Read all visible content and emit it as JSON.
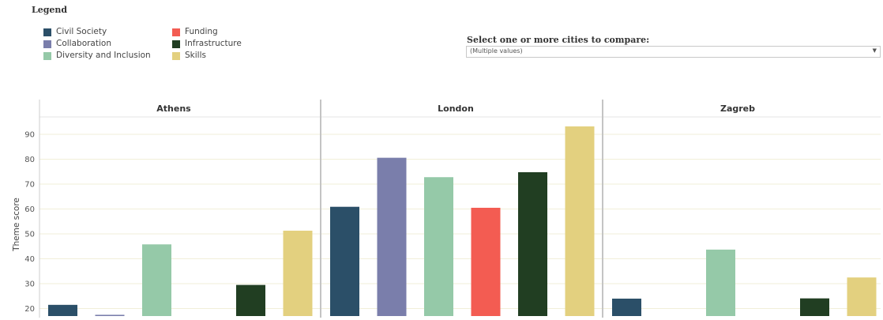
{
  "legend": {
    "title": "Legend",
    "items": [
      {
        "label": "Civil Society",
        "color": "#2b4f68"
      },
      {
        "label": "Collaboration",
        "color": "#7a7eab"
      },
      {
        "label": "Diversity and Inclusion",
        "color": "#95c9a8"
      },
      {
        "label": "Funding",
        "color": "#f35c52"
      },
      {
        "label": "Infrastructure",
        "color": "#213e22"
      },
      {
        "label": "Skills",
        "color": "#e3d07f"
      }
    ]
  },
  "filter": {
    "label": "Select one or more cities to compare:",
    "value": "(Multiple values)",
    "arrow_icon": "▼"
  },
  "chart_data": {
    "type": "bar",
    "ylabel": "Theme score",
    "ylim": [
      17,
      97
    ],
    "yticks": [
      20,
      30,
      40,
      50,
      60,
      70,
      80,
      90
    ],
    "grid": true,
    "legend_placement": "top-left",
    "categories": [
      "Civil Society",
      "Collaboration",
      "Diversity and Inclusion",
      "Funding",
      "Infrastructure",
      "Skills"
    ],
    "panels": [
      {
        "name": "Athens",
        "values": [
          21.5,
          17.5,
          45.8,
          null,
          29.5,
          51.3
        ]
      },
      {
        "name": "London",
        "values": [
          60.9,
          80.6,
          72.8,
          60.5,
          74.8,
          93.2
        ]
      },
      {
        "name": "Zagreb",
        "values": [
          24,
          null,
          43.7,
          null,
          24.1,
          32.5
        ]
      }
    ]
  }
}
